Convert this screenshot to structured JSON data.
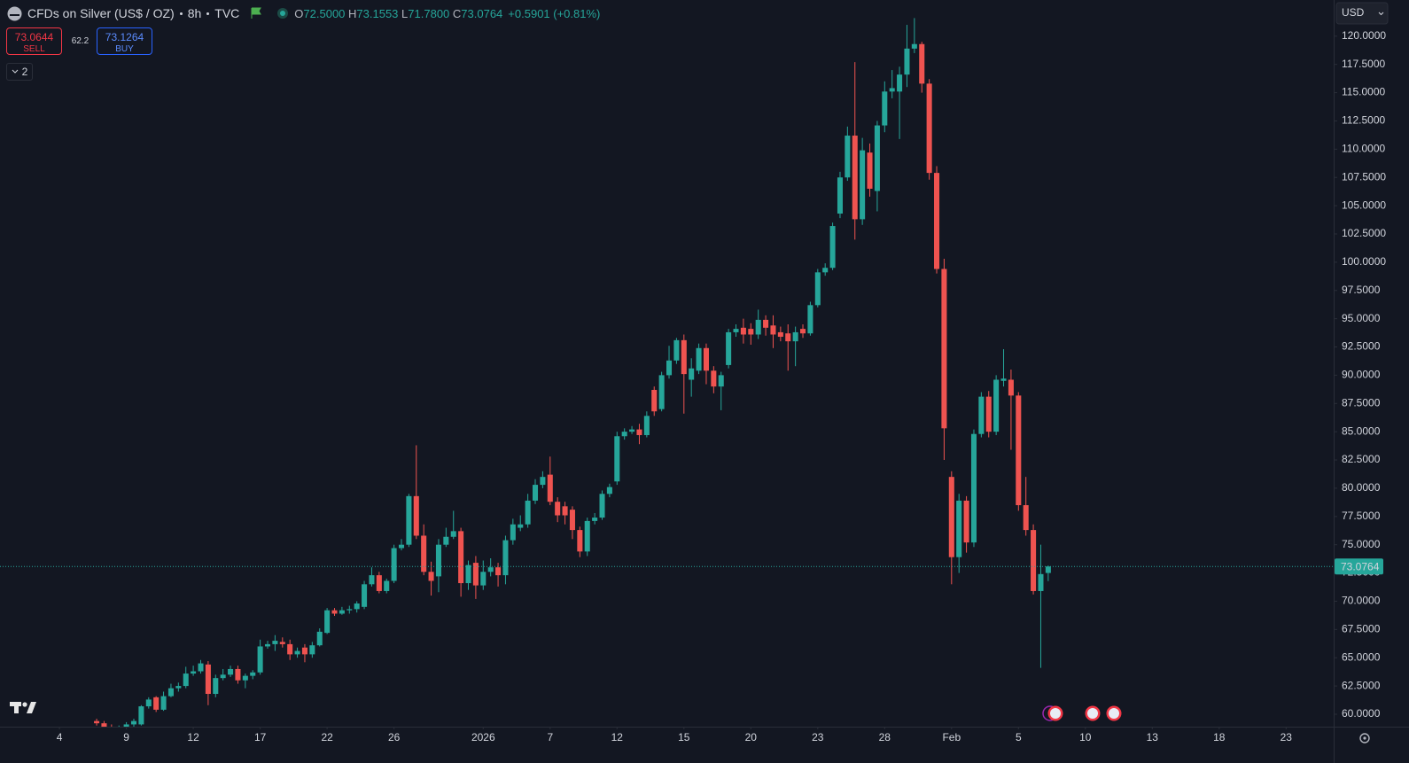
{
  "header": {
    "symbol": "CFDs on Silver (US$ / OZ)",
    "interval": "8h",
    "exchange": "TVC",
    "legend": [
      {
        "key": "O",
        "value": "72.5000"
      },
      {
        "key": "H",
        "value": "73.1553"
      },
      {
        "key": "L",
        "value": "71.7800"
      },
      {
        "key": "C",
        "value": "73.0764"
      }
    ],
    "change": "+0.5901 (+0.81%)"
  },
  "trade": {
    "sell_price": "73.0644",
    "sell_label": "SELL",
    "spread": "62.2",
    "buy_price": "73.1264",
    "buy_label": "BUY"
  },
  "indicators_count": "2",
  "currency": "USD",
  "chart_data": {
    "type": "candlestick",
    "up_color": "#26a69a",
    "down_color": "#ef5350",
    "grid": false,
    "xlim": [
      -13,
      166.4
    ],
    "ylim": [
      58.9,
      123.2
    ],
    "xticks": [
      {
        "value": -5,
        "label": "4"
      },
      {
        "value": 4,
        "label": "9"
      },
      {
        "value": 13,
        "label": "12"
      },
      {
        "value": 22,
        "label": "17"
      },
      {
        "value": 31,
        "label": "22"
      },
      {
        "value": 40,
        "label": "26"
      },
      {
        "value": 52,
        "label": "2026"
      },
      {
        "value": 61,
        "label": "7"
      },
      {
        "value": 70,
        "label": "12"
      },
      {
        "value": 79,
        "label": "15"
      },
      {
        "value": 88,
        "label": "20"
      },
      {
        "value": 97,
        "label": "23"
      },
      {
        "value": 106,
        "label": "28"
      },
      {
        "value": 115,
        "label": "Feb"
      },
      {
        "value": 124,
        "label": "5"
      },
      {
        "value": 133,
        "label": "10"
      },
      {
        "value": 142,
        "label": "13"
      },
      {
        "value": 151,
        "label": "18"
      },
      {
        "value": 160,
        "label": "23"
      }
    ],
    "yticks": [
      {
        "value": 60,
        "label": "60.0000"
      },
      {
        "value": 62.5,
        "label": "62.5000"
      },
      {
        "value": 65,
        "label": "65.0000"
      },
      {
        "value": 67.5,
        "label": "67.5000"
      },
      {
        "value": 70,
        "label": "70.0000"
      },
      {
        "value": 72.5,
        "label": "72.5000"
      },
      {
        "value": 75,
        "label": "75.0000"
      },
      {
        "value": 77.5,
        "label": "77.5000"
      },
      {
        "value": 80,
        "label": "80.0000"
      },
      {
        "value": 82.5,
        "label": "82.5000"
      },
      {
        "value": 85,
        "label": "85.0000"
      },
      {
        "value": 87.5,
        "label": "87.5000"
      },
      {
        "value": 90,
        "label": "90.0000"
      },
      {
        "value": 92.5,
        "label": "92.5000"
      },
      {
        "value": 95,
        "label": "95.0000"
      },
      {
        "value": 97.5,
        "label": "97.5000"
      },
      {
        "value": 100,
        "label": "100.0000"
      },
      {
        "value": 102.5,
        "label": "102.5000"
      },
      {
        "value": 105,
        "label": "105.0000"
      },
      {
        "value": 107.5,
        "label": "107.5000"
      },
      {
        "value": 110,
        "label": "110.0000"
      },
      {
        "value": 112.5,
        "label": "112.5000"
      },
      {
        "value": 115,
        "label": "115.0000"
      },
      {
        "value": 117.5,
        "label": "117.5000"
      },
      {
        "value": 120,
        "label": "120.0000"
      }
    ],
    "open": [
      59.4,
      59.2,
      58.8,
      58.7,
      58.9,
      59.1,
      59.1,
      60.7,
      61.5,
      60.4,
      61.6,
      62.3,
      62.5,
      63.6,
      63.8,
      64.4,
      61.8,
      63.2,
      63.5,
      64.0,
      63.0,
      63.4,
      63.7,
      66.0,
      66.2,
      66.4,
      66.2,
      65.3,
      65.9,
      65.3,
      66.1,
      67.2,
      69.2,
      68.9,
      69.2,
      69.3,
      69.5,
      71.5,
      72.3,
      70.9,
      71.8,
      74.7,
      75.0,
      79.3,
      75.8,
      72.6,
      72.2,
      75.0,
      75.7,
      76.2,
      71.6,
      73.4,
      71.4,
      72.6,
      73.0,
      72.3,
      75.4,
      76.5,
      76.8,
      78.9,
      80.3,
      81.2,
      78.8,
      78.4,
      78.1,
      76.3,
      74.4,
      77.1,
      77.4,
      79.5,
      80.6,
      84.6,
      85.0,
      85.2,
      84.7,
      88.7,
      87.0,
      90.0,
      91.3,
      93.1,
      89.6,
      90.4,
      92.4,
      90.4,
      89.0,
      90.9,
      93.8,
      94.2,
      94.1,
      93.6,
      94.9,
      94.4,
      93.8,
      93.7,
      93.0,
      94.1,
      93.7,
      96.2,
      99.1,
      99.5,
      104.3,
      107.5,
      111.2,
      103.8,
      109.7,
      106.3,
      112.1,
      115.1,
      115.1,
      116.6,
      118.9,
      119.3,
      115.8,
      107.9,
      99.4,
      81.0,
      73.9,
      78.9,
      75.2,
      84.8,
      88.1,
      85.0,
      89.5,
      89.6,
      88.2,
      78.5,
      76.3,
      70.9,
      72.5
    ],
    "high": [
      59.6,
      59.4,
      59.1,
      59.0,
      59.3,
      59.6,
      60.8,
      61.5,
      61.6,
      62.0,
      62.7,
      62.8,
      64.2,
      64.3,
      64.8,
      64.7,
      63.5,
      64.0,
      64.3,
      64.3,
      63.6,
      63.9,
      66.6,
      66.5,
      67.0,
      66.8,
      66.6,
      65.9,
      66.2,
      66.4,
      67.6,
      69.4,
      69.4,
      69.5,
      69.6,
      70.0,
      71.8,
      73.0,
      72.6,
      72.0,
      75.0,
      75.5,
      79.5,
      83.8,
      76.8,
      73.5,
      75.5,
      76.5,
      78.0,
      76.5,
      73.6,
      74.0,
      73.6,
      73.8,
      73.4,
      75.8,
      77.3,
      77.6,
      79.5,
      80.8,
      81.5,
      82.8,
      79.2,
      78.8,
      78.4,
      76.6,
      77.4,
      77.8,
      79.8,
      80.4,
      85.0,
      85.3,
      85.5,
      85.7,
      86.8,
      89.0,
      90.3,
      92.6,
      93.3,
      93.6,
      91.5,
      92.8,
      92.8,
      90.8,
      90.3,
      94.1,
      94.5,
      95.0,
      94.6,
      95.8,
      95.3,
      95.3,
      94.3,
      94.5,
      94.3,
      94.5,
      96.5,
      99.4,
      99.9,
      103.5,
      108.0,
      112.0,
      117.7,
      111.0,
      110.5,
      112.5,
      116.0,
      117.0,
      117.3,
      121.0,
      121.6,
      119.5,
      116.2,
      108.5,
      100.3,
      81.5,
      79.5,
      79.3,
      85.2,
      88.5,
      88.6,
      90.0,
      92.3,
      90.5,
      88.5,
      81.0,
      76.8,
      75.0,
      73.1553
    ],
    "low": [
      59.0,
      58.6,
      58.4,
      58.3,
      58.6,
      58.9,
      59.0,
      60.5,
      60.2,
      60.3,
      61.5,
      62.0,
      62.3,
      63.4,
      63.6,
      60.8,
      61.5,
      63.0,
      63.3,
      62.7,
      62.3,
      63.1,
      63.5,
      65.8,
      65.6,
      65.9,
      64.8,
      65.0,
      64.6,
      65.0,
      66.0,
      67.1,
      68.7,
      68.8,
      68.9,
      69.0,
      69.3,
      71.3,
      70.7,
      70.7,
      71.6,
      74.5,
      74.8,
      75.5,
      72.3,
      70.5,
      70.8,
      74.8,
      75.5,
      70.4,
      71.0,
      70.2,
      71.0,
      72.2,
      71.3,
      71.5,
      75.0,
      76.2,
      76.5,
      78.6,
      80.0,
      78.5,
      77.0,
      76.8,
      75.5,
      73.9,
      74.0,
      76.8,
      77.2,
      79.2,
      80.3,
      84.3,
      84.8,
      83.9,
      84.5,
      86.4,
      86.8,
      89.7,
      91.0,
      86.6,
      88.1,
      90.1,
      89.2,
      88.4,
      86.9,
      90.6,
      93.4,
      92.8,
      92.7,
      93.2,
      93.5,
      92.4,
      93.0,
      90.4,
      90.8,
      93.3,
      93.5,
      96.0,
      98.8,
      99.3,
      103.9,
      107.2,
      102.0,
      103.3,
      105.8,
      104.5,
      111.5,
      114.5,
      110.9,
      115.5,
      118.5,
      115.0,
      107.3,
      99.0,
      82.5,
      71.5,
      72.5,
      74.3,
      74.8,
      84.5,
      84.5,
      84.7,
      89.0,
      83.4,
      78.0,
      75.8,
      70.6,
      64.1,
      71.78
    ],
    "close": [
      59.2,
      58.8,
      58.7,
      58.9,
      59.1,
      59.4,
      60.7,
      61.3,
      60.4,
      61.6,
      62.3,
      62.5,
      63.6,
      63.8,
      64.5,
      61.8,
      63.2,
      63.5,
      64.0,
      63.0,
      63.4,
      63.7,
      66.0,
      66.2,
      66.5,
      66.2,
      65.3,
      65.6,
      65.3,
      66.1,
      67.3,
      69.2,
      68.9,
      69.2,
      69.3,
      69.8,
      71.5,
      72.3,
      70.9,
      71.8,
      74.7,
      75.0,
      79.3,
      75.8,
      72.6,
      71.8,
      75.0,
      75.7,
      76.2,
      71.6,
      73.2,
      71.4,
      72.6,
      73.0,
      72.3,
      75.4,
      76.8,
      76.8,
      78.9,
      80.3,
      81.0,
      78.8,
      77.6,
      77.6,
      76.3,
      74.4,
      77.1,
      77.4,
      79.5,
      80.1,
      84.6,
      85.0,
      85.2,
      84.7,
      86.4,
      86.8,
      90.0,
      91.3,
      93.1,
      90.1,
      90.6,
      92.4,
      90.4,
      89.0,
      90.0,
      93.8,
      94.1,
      93.6,
      93.6,
      94.9,
      94.2,
      93.6,
      93.4,
      93.0,
      93.8,
      93.7,
      96.2,
      99.1,
      99.5,
      103.2,
      107.5,
      111.2,
      103.8,
      109.9,
      106.5,
      112.1,
      115.1,
      115.4,
      116.6,
      118.9,
      119.3,
      115.8,
      107.9,
      99.4,
      85.3,
      73.9,
      78.9,
      75.2,
      84.8,
      88.1,
      85.0,
      89.6,
      89.7,
      88.2,
      78.5,
      76.3,
      70.9,
      72.4,
      73.0764
    ]
  }
}
